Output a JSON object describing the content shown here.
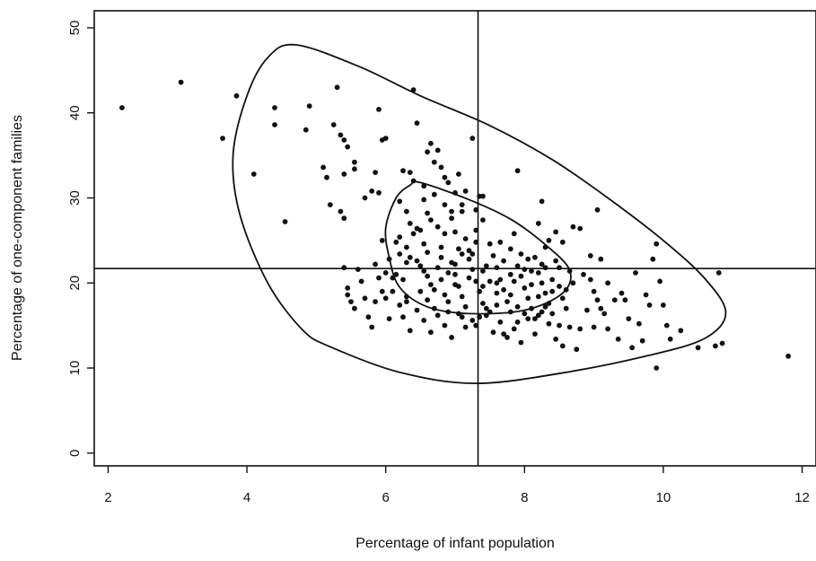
{
  "chart_data": {
    "type": "scatter",
    "title": "",
    "xlabel": "Percentage of infant population",
    "ylabel": "Percentage of one-component families",
    "xlim": [
      1.8,
      12.2
    ],
    "ylim": [
      -1.5,
      52
    ],
    "x_ticks": [
      2,
      4,
      6,
      8,
      10,
      12
    ],
    "y_ticks": [
      0,
      10,
      20,
      30,
      40,
      50
    ],
    "grid": false,
    "reference_lines": {
      "vertical_x": 7.33,
      "horizontal_y": 21.7
    },
    "contours": [
      {
        "points": [
          [
            4.7,
            48
          ],
          [
            5.6,
            45.5
          ],
          [
            6.5,
            42
          ],
          [
            7.5,
            38.5
          ],
          [
            8.4,
            34.5
          ],
          [
            9.2,
            30
          ],
          [
            10.0,
            25
          ],
          [
            10.6,
            20.5
          ],
          [
            10.9,
            16.5
          ],
          [
            10.6,
            13.5
          ],
          [
            9.8,
            11.5
          ],
          [
            8.6,
            9.5
          ],
          [
            7.3,
            8.2
          ],
          [
            6.2,
            9.5
          ],
          [
            5.2,
            12.5
          ],
          [
            4.8,
            14.5
          ],
          [
            4.3,
            20
          ],
          [
            3.9,
            28
          ],
          [
            3.8,
            35
          ],
          [
            4.0,
            42
          ],
          [
            4.3,
            46.5
          ]
        ]
      },
      {
        "points": [
          [
            6.5,
            31.8
          ],
          [
            7.2,
            29.8
          ],
          [
            7.8,
            27.5
          ],
          [
            8.3,
            24.5
          ],
          [
            8.65,
            21.5
          ],
          [
            8.55,
            18.8
          ],
          [
            8.0,
            16.8
          ],
          [
            7.2,
            16.4
          ],
          [
            6.6,
            17.2
          ],
          [
            6.2,
            19.5
          ],
          [
            6.05,
            23
          ],
          [
            6.0,
            26.5
          ],
          [
            6.15,
            30
          ],
          [
            6.35,
            31.5
          ]
        ]
      }
    ],
    "points": [
      [
        2.2,
        40.6
      ],
      [
        3.05,
        43.6
      ],
      [
        3.65,
        37.0
      ],
      [
        3.85,
        42.0
      ],
      [
        4.1,
        32.8
      ],
      [
        4.4,
        40.6
      ],
      [
        4.4,
        38.6
      ],
      [
        4.55,
        27.2
      ],
      [
        4.85,
        38.0
      ],
      [
        4.9,
        40.8
      ],
      [
        5.1,
        33.6
      ],
      [
        5.15,
        32.4
      ],
      [
        5.25,
        38.6
      ],
      [
        5.3,
        43.0
      ],
      [
        5.35,
        37.4
      ],
      [
        5.4,
        36.8
      ],
      [
        5.45,
        36.0
      ],
      [
        5.55,
        34.2
      ],
      [
        5.4,
        32.8
      ],
      [
        5.55,
        33.4
      ],
      [
        5.2,
        29.2
      ],
      [
        5.35,
        28.4
      ],
      [
        5.4,
        27.6
      ],
      [
        5.7,
        30.0
      ],
      [
        5.8,
        30.8
      ],
      [
        5.9,
        30.6
      ],
      [
        5.9,
        40.4
      ],
      [
        5.95,
        36.8
      ],
      [
        6.0,
        37.0
      ],
      [
        5.85,
        33.0
      ],
      [
        5.4,
        21.8
      ],
      [
        5.45,
        19.4
      ],
      [
        5.45,
        18.6
      ],
      [
        5.5,
        17.8
      ],
      [
        5.6,
        21.6
      ],
      [
        5.65,
        20.2
      ],
      [
        5.7,
        18.2
      ],
      [
        5.55,
        17.0
      ],
      [
        5.75,
        16.0
      ],
      [
        5.85,
        22.2
      ],
      [
        5.9,
        20.6
      ],
      [
        5.95,
        19.0
      ],
      [
        5.85,
        17.8
      ],
      [
        5.8,
        14.8
      ],
      [
        6.0,
        18.2
      ],
      [
        6.05,
        15.8
      ],
      [
        6.1,
        20.6
      ],
      [
        6.15,
        21.0
      ],
      [
        6.2,
        17.4
      ],
      [
        6.25,
        16.0
      ],
      [
        6.3,
        22.4
      ],
      [
        6.3,
        18.4
      ],
      [
        6.35,
        14.4
      ],
      [
        6.4,
        42.7
      ],
      [
        6.25,
        33.2
      ],
      [
        6.35,
        33.0
      ],
      [
        6.45,
        38.8
      ],
      [
        6.4,
        32.0
      ],
      [
        6.55,
        31.4
      ],
      [
        6.6,
        35.4
      ],
      [
        6.65,
        36.4
      ],
      [
        6.7,
        34.2
      ],
      [
        6.75,
        35.6
      ],
      [
        6.8,
        33.6
      ],
      [
        6.85,
        32.4
      ],
      [
        6.9,
        31.8
      ],
      [
        7.0,
        30.6
      ],
      [
        7.05,
        32.8
      ],
      [
        7.15,
        30.8
      ],
      [
        7.25,
        37.0
      ],
      [
        7.35,
        30.2
      ],
      [
        7.4,
        30.2
      ],
      [
        6.2,
        29.6
      ],
      [
        6.3,
        28.4
      ],
      [
        6.35,
        27.0
      ],
      [
        6.4,
        25.8
      ],
      [
        6.45,
        26.4
      ],
      [
        6.5,
        26.2
      ],
      [
        6.55,
        24.6
      ],
      [
        6.6,
        28.2
      ],
      [
        6.65,
        27.4
      ],
      [
        6.75,
        26.6
      ],
      [
        6.85,
        25.8
      ],
      [
        6.95,
        27.6
      ],
      [
        7.0,
        26.0
      ],
      [
        7.1,
        28.4
      ],
      [
        7.15,
        25.2
      ],
      [
        7.2,
        23.8
      ],
      [
        7.3,
        26.2
      ],
      [
        7.4,
        27.4
      ],
      [
        6.2,
        25.4
      ],
      [
        6.3,
        24.2
      ],
      [
        6.35,
        23.0
      ],
      [
        6.45,
        22.6
      ],
      [
        6.5,
        22.0
      ],
      [
        6.55,
        21.4
      ],
      [
        6.6,
        20.8
      ],
      [
        6.65,
        19.8
      ],
      [
        6.7,
        19.2
      ],
      [
        6.75,
        21.8
      ],
      [
        6.8,
        20.4
      ],
      [
        6.85,
        18.6
      ],
      [
        6.9,
        17.8
      ],
      [
        6.95,
        22.4
      ],
      [
        7.0,
        21.0
      ],
      [
        7.05,
        19.6
      ],
      [
        7.1,
        18.4
      ],
      [
        7.15,
        17.2
      ],
      [
        7.2,
        22.8
      ],
      [
        7.25,
        21.6
      ],
      [
        7.3,
        20.2
      ],
      [
        7.35,
        19.0
      ],
      [
        7.4,
        17.6
      ],
      [
        7.45,
        16.2
      ],
      [
        7.5,
        24.6
      ],
      [
        7.55,
        23.2
      ],
      [
        7.6,
        21.8
      ],
      [
        7.65,
        20.4
      ],
      [
        7.7,
        19.2
      ],
      [
        7.75,
        17.8
      ],
      [
        7.8,
        16.6
      ],
      [
        7.85,
        25.8
      ],
      [
        7.9,
        22.0
      ],
      [
        7.95,
        20.8
      ],
      [
        8.0,
        19.4
      ],
      [
        8.05,
        18.2
      ],
      [
        8.1,
        17.0
      ],
      [
        8.15,
        15.8
      ],
      [
        8.2,
        21.2
      ],
      [
        8.25,
        20.0
      ],
      [
        8.3,
        18.8
      ],
      [
        8.35,
        17.6
      ],
      [
        8.4,
        16.4
      ],
      [
        8.45,
        22.6
      ],
      [
        8.5,
        19.6
      ],
      [
        8.55,
        18.2
      ],
      [
        8.6,
        17.0
      ],
      [
        8.65,
        21.4
      ],
      [
        8.7,
        20.0
      ],
      [
        6.45,
        16.8
      ],
      [
        6.55,
        15.6
      ],
      [
        6.65,
        14.2
      ],
      [
        6.75,
        16.2
      ],
      [
        6.85,
        15.0
      ],
      [
        6.95,
        13.6
      ],
      [
        7.05,
        16.4
      ],
      [
        7.15,
        14.8
      ],
      [
        7.25,
        15.6
      ],
      [
        7.35,
        16.0
      ],
      [
        7.45,
        17.0
      ],
      [
        7.55,
        14.2
      ],
      [
        7.65,
        15.4
      ],
      [
        7.75,
        13.6
      ],
      [
        7.85,
        14.6
      ],
      [
        7.95,
        13.0
      ],
      [
        8.05,
        15.8
      ],
      [
        8.15,
        14.0
      ],
      [
        8.25,
        16.6
      ],
      [
        8.35,
        15.2
      ],
      [
        8.45,
        13.4
      ],
      [
        8.55,
        12.6
      ],
      [
        8.65,
        14.8
      ],
      [
        8.75,
        12.2
      ],
      [
        8.8,
        14.6
      ],
      [
        7.9,
        33.2
      ],
      [
        8.2,
        27.0
      ],
      [
        8.25,
        29.6
      ],
      [
        8.3,
        24.2
      ],
      [
        8.35,
        25.0
      ],
      [
        8.7,
        26.6
      ],
      [
        8.8,
        26.4
      ],
      [
        8.95,
        23.2
      ],
      [
        9.05,
        28.6
      ],
      [
        9.1,
        22.8
      ],
      [
        8.85,
        21.0
      ],
      [
        8.95,
        20.4
      ],
      [
        9.0,
        19.0
      ],
      [
        9.05,
        18.0
      ],
      [
        9.1,
        17.0
      ],
      [
        9.15,
        16.4
      ],
      [
        9.2,
        14.6
      ],
      [
        9.3,
        18.0
      ],
      [
        9.35,
        13.4
      ],
      [
        9.45,
        18.0
      ],
      [
        9.5,
        15.8
      ],
      [
        9.55,
        12.4
      ],
      [
        9.6,
        21.2
      ],
      [
        9.65,
        15.2
      ],
      [
        9.7,
        13.2
      ],
      [
        9.75,
        18.6
      ],
      [
        9.8,
        17.4
      ],
      [
        9.85,
        22.8
      ],
      [
        9.9,
        24.6
      ],
      [
        9.95,
        20.2
      ],
      [
        10.0,
        17.4
      ],
      [
        9.9,
        10.0
      ],
      [
        10.05,
        15.0
      ],
      [
        10.1,
        13.4
      ],
      [
        10.25,
        14.4
      ],
      [
        10.5,
        12.4
      ],
      [
        10.75,
        12.6
      ],
      [
        10.8,
        21.2
      ],
      [
        10.85,
        12.9
      ],
      [
        11.8,
        11.4
      ],
      [
        7.05,
        24.0
      ],
      [
        7.25,
        23.4
      ],
      [
        7.45,
        22.0
      ],
      [
        7.6,
        20.0
      ],
      [
        7.8,
        18.6
      ],
      [
        8.0,
        21.6
      ],
      [
        8.15,
        23.0
      ],
      [
        8.4,
        20.4
      ],
      [
        6.6,
        23.6
      ],
      [
        6.8,
        23.0
      ],
      [
        7.0,
        22.2
      ],
      [
        7.2,
        20.6
      ],
      [
        7.4,
        19.6
      ],
      [
        7.6,
        18.8
      ],
      [
        7.8,
        21.0
      ],
      [
        8.1,
        19.8
      ],
      [
        8.3,
        21.8
      ],
      [
        8.6,
        19.2
      ],
      [
        6.9,
        16.6
      ],
      [
        7.1,
        16.0
      ],
      [
        7.3,
        15.0
      ],
      [
        7.5,
        16.6
      ],
      [
        7.7,
        14.0
      ],
      [
        7.9,
        15.4
      ],
      [
        8.2,
        16.2
      ],
      [
        8.5,
        15.0
      ],
      [
        8.9,
        16.8
      ],
      [
        9.0,
        14.8
      ],
      [
        9.2,
        20.0
      ],
      [
        9.4,
        18.8
      ],
      [
        6.5,
        19.0
      ],
      [
        6.6,
        18.0
      ],
      [
        6.7,
        17.0
      ],
      [
        6.8,
        24.2
      ],
      [
        6.9,
        21.2
      ],
      [
        7.0,
        19.8
      ],
      [
        7.1,
        23.4
      ],
      [
        7.3,
        24.8
      ],
      [
        7.4,
        21.4
      ],
      [
        7.5,
        20.2
      ],
      [
        7.6,
        17.4
      ],
      [
        7.7,
        22.6
      ],
      [
        7.8,
        24.0
      ],
      [
        7.9,
        17.2
      ],
      [
        8.0,
        16.4
      ],
      [
        8.1,
        21.4
      ],
      [
        8.2,
        18.4
      ],
      [
        8.3,
        17.2
      ],
      [
        8.4,
        19.0
      ],
      [
        8.5,
        21.8
      ],
      [
        5.95,
        25.0
      ],
      [
        6.05,
        22.8
      ],
      [
        6.15,
        24.8
      ],
      [
        6.25,
        20.4
      ],
      [
        6.1,
        19.0
      ],
      [
        6.2,
        23.4
      ],
      [
        6.3,
        17.8
      ],
      [
        6.0,
        21.2
      ],
      [
        7.65,
        24.8
      ],
      [
        7.85,
        20.2
      ],
      [
        7.95,
        23.4
      ],
      [
        8.05,
        22.8
      ],
      [
        8.25,
        22.2
      ],
      [
        8.55,
        24.8
      ],
      [
        8.45,
        26.0
      ],
      [
        6.7,
        30.4
      ],
      [
        6.85,
        29.2
      ],
      [
        7.1,
        29.2
      ],
      [
        7.3,
        28.6
      ],
      [
        6.55,
        29.8
      ],
      [
        6.95,
        28.4
      ]
    ]
  }
}
